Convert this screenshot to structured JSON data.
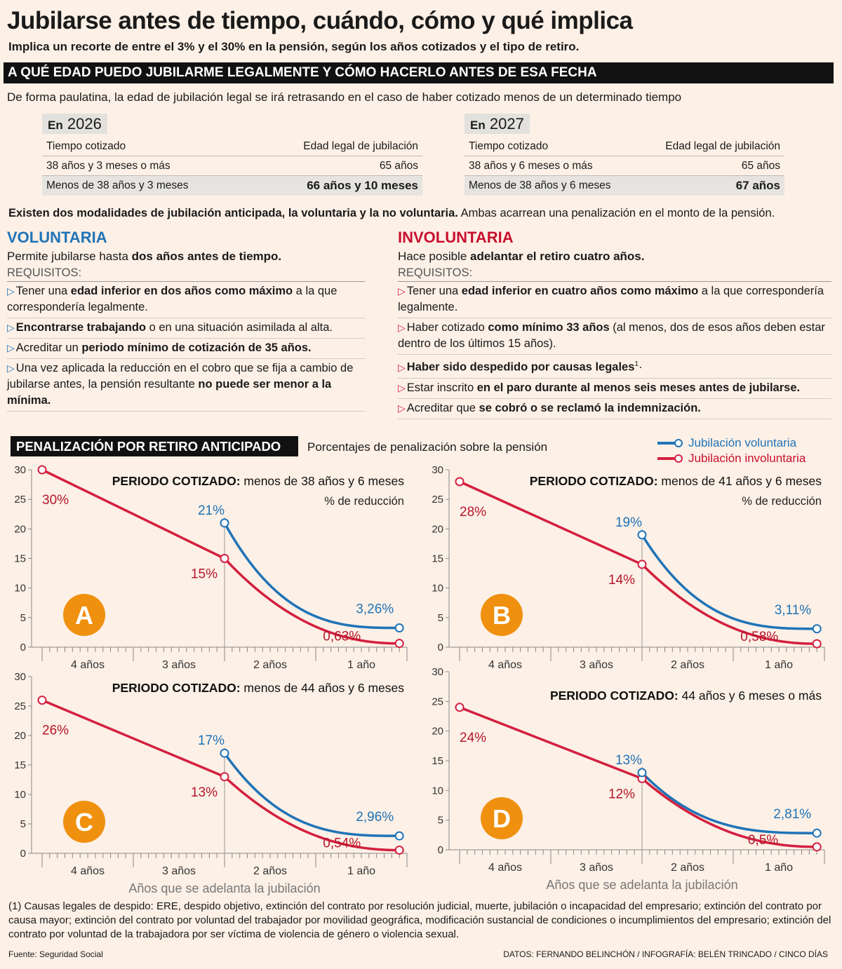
{
  "title": "Jubilarse antes de tiempo, cuándo, cómo y qué implica",
  "subtitle": "Implica un recorte de entre el 3% y el 30% en la pensión, según los años cotizados y el tipo de retiro.",
  "section1": "A QUÉ EDAD PUEDO JUBILARME LEGALMENTE Y CÓMO HACERLO ANTES DE ESA FECHA",
  "intro": "De forma paulatina, la edad de jubilación legal se irá retrasando en el caso de haber cotizado menos de un determinado tiempo",
  "tables": [
    {
      "prefix": "En",
      "year": "2026",
      "col1": "Tiempo cotizado",
      "col2": "Edad legal de jubilación",
      "rows": [
        [
          "38 años y 3 meses o más",
          "65 años"
        ],
        [
          "Menos de 38 años y 3 meses",
          "66 años y 10 meses"
        ]
      ]
    },
    {
      "prefix": "En",
      "year": "2027",
      "col1": "Tiempo cotizado",
      "col2": "Edad legal de jubilación",
      "rows": [
        [
          "38 años y 6 meses o más",
          "65 años"
        ],
        [
          "Menos de 38 años y 6 meses",
          "67 años"
        ]
      ]
    }
  ],
  "modalities": {
    "bold": "Existen dos modalidades de jubilación anticipada, la voluntaria y la no voluntaria.",
    "normal": " Ambas acarrean una penalización en el monto de la pensión."
  },
  "voluntaria": {
    "heading": "VOLUNTARIA",
    "desc_a": "Permite jubilarse hasta ",
    "desc_b": "dos años antes de tiempo.",
    "req": "REQUISITOS:",
    "items": [
      [
        {
          "t": "Tener una "
        },
        {
          "t": "edad inferior en dos años como máximo",
          "b": true
        },
        {
          "t": " a la que correspondería legalmente."
        }
      ],
      [
        {
          "t": "Encontrarse trabajando",
          "b": true
        },
        {
          "t": " o en una situación asimilada al alta."
        }
      ],
      [
        {
          "t": "Acreditar un "
        },
        {
          "t": "periodo mínimo de cotización de 35 años.",
          "b": true
        }
      ],
      [
        {
          "t": "Una vez aplicada la reducción en el cobro que se fija a cambio de jubilarse antes, la pensión resultante "
        },
        {
          "t": "no puede ser menor a la mínima.",
          "b": true
        }
      ]
    ]
  },
  "involuntaria": {
    "heading": "INVOLUNTARIA",
    "desc_a": "Hace posible ",
    "desc_b": "adelantar el retiro cuatro años.",
    "req": "REQUISITOS:",
    "items": [
      [
        {
          "t": "Tener una "
        },
        {
          "t": "edad inferior en cuatro años como máximo",
          "b": true
        },
        {
          "t": " a la que correspondería legalmente."
        }
      ],
      [
        {
          "t": "Haber cotizado "
        },
        {
          "t": "como mínimo 33 años",
          "b": true
        },
        {
          "t": " (al menos, dos de esos años deben estar dentro de los últimos 15 años)."
        }
      ],
      [
        {
          "t": "Haber sido despedido por causas legales",
          "b": true
        },
        {
          "t": "1",
          "sup": true
        },
        {
          "t": "·"
        }
      ],
      [
        {
          "t": "Estar inscrito "
        },
        {
          "t": "en el paro durante al menos seis meses antes de jubilarse.",
          "b": true
        }
      ],
      [
        {
          "t": "Acreditar que "
        },
        {
          "t": "se cobró o se reclamó la indemnización.",
          "b": true
        }
      ]
    ]
  },
  "section2": "PENALIZACIÓN POR RETIRO ANTICIPADO",
  "section2_sub": "Porcentajes de penalización sobre la pensión",
  "legend": {
    "voluntary": "Jubilación voluntaria",
    "involuntary": "Jubilación involuntaria"
  },
  "colors": {
    "voluntary": "#1f73b7",
    "involuntary": "#d3203f",
    "inv_text": "#b5162b",
    "badge": "#f0900f"
  },
  "chart_data": [
    {
      "type": "line",
      "badge": "A",
      "title_bold": "PERIODO COTIZADO:",
      "title_rest": " menos de 38 años y 6 meses",
      "unit_label": "% de reducción",
      "ylim": [
        0,
        30
      ],
      "yticks": [
        0,
        5,
        10,
        15,
        20,
        25,
        30
      ],
      "x_unit": "months in advance",
      "xlim": [
        48,
        0
      ],
      "xtick_labels": [
        "4 años",
        "3 años",
        "2 años",
        "1 año"
      ],
      "involuntary": {
        "start": [
          48,
          30
        ],
        "mid": [
          24,
          15
        ],
        "end": [
          1,
          0.63
        ],
        "labels": [
          "30%",
          "15%",
          "0,63%"
        ]
      },
      "voluntary": {
        "start": [
          24,
          21
        ],
        "end": [
          1,
          3.26
        ],
        "labels": [
          "21%",
          "3,26%"
        ]
      }
    },
    {
      "type": "line",
      "badge": "B",
      "title_bold": "PERIODO COTIZADO:",
      "title_rest": " menos de 41 años y 6 meses",
      "unit_label": "% de reducción",
      "ylim": [
        0,
        30
      ],
      "yticks": [
        0,
        5,
        10,
        15,
        20,
        25,
        30
      ],
      "x_unit": "months in advance",
      "xlim": [
        48,
        0
      ],
      "xtick_labels": [
        "4 años",
        "3 años",
        "2 años",
        "1 año"
      ],
      "involuntary": {
        "start": [
          48,
          28
        ],
        "mid": [
          24,
          14
        ],
        "end": [
          1,
          0.58
        ],
        "labels": [
          "28%",
          "14%",
          "0,58%"
        ]
      },
      "voluntary": {
        "start": [
          24,
          19
        ],
        "end": [
          1,
          3.11
        ],
        "labels": [
          "19%",
          "3,11%"
        ]
      }
    },
    {
      "type": "line",
      "badge": "C",
      "title_bold": "PERIODO COTIZADO:",
      "title_rest": " menos de 44 años y 6 meses",
      "unit_label": "",
      "ylim": [
        0,
        30
      ],
      "yticks": [
        0,
        5,
        10,
        15,
        20,
        25,
        30
      ],
      "x_unit": "months in advance",
      "xlim": [
        48,
        0
      ],
      "xtick_labels": [
        "4 años",
        "3 años",
        "2 años",
        "1 año"
      ],
      "xlabel": "Años que se adelanta la jubilación",
      "involuntary": {
        "start": [
          48,
          26
        ],
        "mid": [
          24,
          13
        ],
        "end": [
          1,
          0.54
        ],
        "labels": [
          "26%",
          "13%",
          "0,54%"
        ]
      },
      "voluntary": {
        "start": [
          24,
          17
        ],
        "end": [
          1,
          2.96
        ],
        "labels": [
          "17%",
          "2,96%"
        ]
      }
    },
    {
      "type": "line",
      "badge": "D",
      "title_bold": "PERIODO COTIZADO:",
      "title_rest": " 44 años y 6 meses o más",
      "unit_label": "",
      "ylim": [
        0,
        30
      ],
      "yticks": [
        0,
        5,
        10,
        15,
        20,
        25,
        30
      ],
      "x_unit": "months in advance",
      "xlim": [
        48,
        0
      ],
      "xtick_labels": [
        "4 años",
        "3 años",
        "2 años",
        "1 año"
      ],
      "xlabel": "Años que se adelanta la jubilación",
      "involuntary": {
        "start": [
          48,
          24
        ],
        "mid": [
          24,
          12
        ],
        "end": [
          1,
          0.5
        ],
        "labels": [
          "24%",
          "12%",
          "0,5%"
        ]
      },
      "voluntary": {
        "start": [
          24,
          13
        ],
        "end": [
          1,
          2.81
        ],
        "labels": [
          "13%",
          "2,81%"
        ]
      }
    }
  ],
  "footnote": "(1) Causas legales de despido: ERE, despido objetivo, extinción del contrato por resolución judicial, muerte, jubilación o incapacidad del empresario; extinción del contrato por causa mayor; extinción del contrato por voluntad del trabajador por movilidad geográfica, modificación sustancial de condiciones o incumplimientos del empresario; extinción del contrato por voluntad de la trabajadora por ser víctima de violencia de género o violencia sexual.",
  "source": "Fuente: Seguridad Social",
  "credit": "DATOS: FERNANDO BELINCHÓN / INFOGRAFÍA: BELÉN TRINCADO / CINCO DÍAS"
}
